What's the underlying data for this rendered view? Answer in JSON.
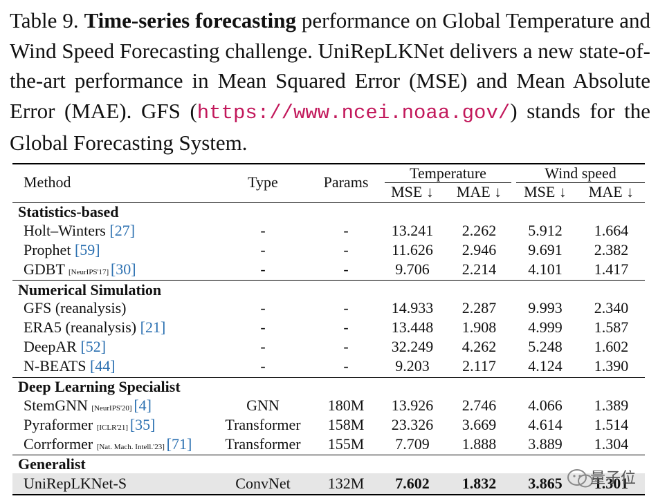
{
  "caption": {
    "label": "Table 9.",
    "bold": "Time-series forecasting",
    "text1": "performance on Global Temperature and Wind Speed Forecasting challenge. UniRepLKNet delivers a new state-of-the-art performance in Mean Squared Error (MSE) and Mean Absolute Error (MAE). GFS (",
    "url": "https://www.ncei.noaa.gov/",
    "text2": ") stands for the Global Forecasting System."
  },
  "header": {
    "method": "Method",
    "type": "Type",
    "params": "Params",
    "temperature": "Temperature",
    "wind": "Wind speed",
    "mse": "MSE ↓",
    "mae": "MAE ↓"
  },
  "sections": {
    "s1": "Statistics-based",
    "s2": "Numerical Simulation",
    "s3": "Deep Learning Specialist",
    "s4": "Generalist"
  },
  "rows": [
    {
      "method": "Holt–Winters ",
      "venue": "",
      "ref": "[27]",
      "type": "-",
      "params": "-",
      "t_mse": "13.241",
      "t_mae": "2.262",
      "w_mse": "5.912",
      "w_mae": "1.664"
    },
    {
      "method": "Prophet ",
      "venue": "",
      "ref": "[59]",
      "type": "-",
      "params": "-",
      "t_mse": "11.626",
      "t_mae": "2.946",
      "w_mse": "9.691",
      "w_mae": "2.382"
    },
    {
      "method": "GDBT ",
      "venue": "[NeurIPS'17] ",
      "ref": "[30]",
      "type": "-",
      "params": "-",
      "t_mse": "9.706",
      "t_mae": "2.214",
      "w_mse": "4.101",
      "w_mae": "1.417"
    },
    {
      "method": "GFS (reanalysis)",
      "venue": "",
      "ref": "",
      "type": "-",
      "params": "-",
      "t_mse": "14.933",
      "t_mae": "2.287",
      "w_mse": "9.993",
      "w_mae": "2.340"
    },
    {
      "method": "ERA5 (reanalysis) ",
      "venue": "",
      "ref": "[21]",
      "type": "-",
      "params": "-",
      "t_mse": "13.448",
      "t_mae": "1.908",
      "w_mse": "4.999",
      "w_mae": "1.587"
    },
    {
      "method": "DeepAR ",
      "venue": "",
      "ref": "[52]",
      "type": "-",
      "params": "-",
      "t_mse": "32.249",
      "t_mae": "4.262",
      "w_mse": "5.248",
      "w_mae": "1.602"
    },
    {
      "method": "N-BEATS ",
      "venue": "",
      "ref": "[44]",
      "type": "-",
      "params": "-",
      "t_mse": "9.203",
      "t_mae": "2.117",
      "w_mse": "4.124",
      "w_mae": "1.390"
    },
    {
      "method": "StemGNN ",
      "venue": "[NeurIPS'20] ",
      "ref": "[4]",
      "type": "GNN",
      "params": "180M",
      "t_mse": "13.926",
      "t_mae": "2.746",
      "w_mse": "4.066",
      "w_mae": "1.389"
    },
    {
      "method": "Pyraformer ",
      "venue": "[ICLR'21] ",
      "ref": "[35]",
      "type": "Transformer",
      "params": "158M",
      "t_mse": "23.326",
      "t_mae": "3.669",
      "w_mse": "4.614",
      "w_mae": "1.514"
    },
    {
      "method": "Corrformer ",
      "venue": "[Nat. Mach. Intell.'23] ",
      "ref": "[71]",
      "type": "Transformer",
      "params": "155M",
      "t_mse": "7.709",
      "t_mae": "1.888",
      "w_mse": "3.889",
      "w_mae": "1.304"
    },
    {
      "method": "UniRepLKNet-S",
      "venue": "",
      "ref": "",
      "type": "ConvNet",
      "params": "132M",
      "t_mse": "7.602",
      "t_mae": "1.832",
      "w_mse": "3.865",
      "w_mae": "1.301"
    }
  ],
  "watermark": "量子位"
}
